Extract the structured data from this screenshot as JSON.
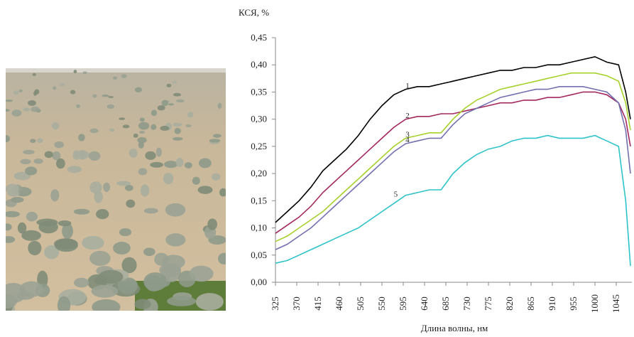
{
  "chart_data": {
    "type": "line",
    "y_label": "КСЯ, %",
    "x_label": "Длина волны, нм",
    "x": [
      325,
      350,
      375,
      400,
      425,
      450,
      475,
      500,
      525,
      550,
      575,
      600,
      625,
      650,
      675,
      700,
      725,
      750,
      775,
      800,
      825,
      850,
      875,
      900,
      925,
      950,
      975,
      1000,
      1025,
      1050,
      1065,
      1075
    ],
    "series": [
      {
        "name": "1",
        "color": "#000000",
        "values": [
          0.11,
          0.13,
          0.15,
          0.175,
          0.205,
          0.225,
          0.245,
          0.27,
          0.3,
          0.325,
          0.345,
          0.355,
          0.36,
          0.36,
          0.365,
          0.37,
          0.375,
          0.38,
          0.385,
          0.39,
          0.39,
          0.395,
          0.395,
          0.4,
          0.4,
          0.405,
          0.41,
          0.415,
          0.405,
          0.4,
          0.35,
          0.3
        ]
      },
      {
        "name": "2",
        "color": "#a3285e",
        "values": [
          0.09,
          0.105,
          0.12,
          0.14,
          0.165,
          0.185,
          0.205,
          0.225,
          0.245,
          0.265,
          0.285,
          0.3,
          0.305,
          0.305,
          0.31,
          0.31,
          0.315,
          0.32,
          0.325,
          0.33,
          0.33,
          0.335,
          0.335,
          0.34,
          0.34,
          0.345,
          0.35,
          0.35,
          0.345,
          0.33,
          0.3,
          0.25
        ]
      },
      {
        "name": "3",
        "color": "#a6d12a",
        "values": [
          0.075,
          0.085,
          0.1,
          0.115,
          0.13,
          0.15,
          0.17,
          0.19,
          0.21,
          0.23,
          0.25,
          0.265,
          0.27,
          0.275,
          0.275,
          0.3,
          0.32,
          0.335,
          0.345,
          0.355,
          0.36,
          0.365,
          0.37,
          0.375,
          0.38,
          0.385,
          0.385,
          0.385,
          0.38,
          0.37,
          0.33,
          0.28
        ]
      },
      {
        "name": "4",
        "color": "#7470b0",
        "values": [
          0.06,
          0.07,
          0.085,
          0.1,
          0.12,
          0.14,
          0.16,
          0.18,
          0.2,
          0.22,
          0.24,
          0.255,
          0.26,
          0.265,
          0.265,
          0.29,
          0.31,
          0.32,
          0.33,
          0.34,
          0.345,
          0.35,
          0.355,
          0.355,
          0.36,
          0.36,
          0.36,
          0.355,
          0.35,
          0.33,
          0.28,
          0.2
        ]
      },
      {
        "name": "5",
        "color": "#2ec3c9",
        "values": [
          0.035,
          0.04,
          0.05,
          0.06,
          0.07,
          0.08,
          0.09,
          0.1,
          0.115,
          0.13,
          0.145,
          0.16,
          0.165,
          0.17,
          0.17,
          0.2,
          0.22,
          0.235,
          0.245,
          0.25,
          0.26,
          0.265,
          0.265,
          0.27,
          0.265,
          0.265,
          0.265,
          0.27,
          0.26,
          0.25,
          0.15,
          0.03
        ]
      }
    ],
    "xlim": [
      325,
      1078
    ],
    "xticks": [
      325,
      370,
      415,
      460,
      505,
      550,
      595,
      640,
      685,
      730,
      775,
      820,
      865,
      910,
      955,
      1000,
      1045
    ],
    "ylim": [
      0,
      0.45
    ],
    "yticks": [
      {
        "value": 0,
        "label": "0,00"
      },
      {
        "value": 0.05,
        "label": "0,05"
      },
      {
        "value": 0.1,
        "label": "0,10"
      },
      {
        "value": 0.15,
        "label": "0,15"
      },
      {
        "value": 0.2,
        "label": "0,20"
      },
      {
        "value": 0.25,
        "label": "0,25"
      },
      {
        "value": 0.3,
        "label": "0,30"
      },
      {
        "value": 0.35,
        "label": "0,35"
      },
      {
        "value": 0.4,
        "label": "0,40"
      },
      {
        "value": 0.45,
        "label": "0,45"
      }
    ]
  }
}
